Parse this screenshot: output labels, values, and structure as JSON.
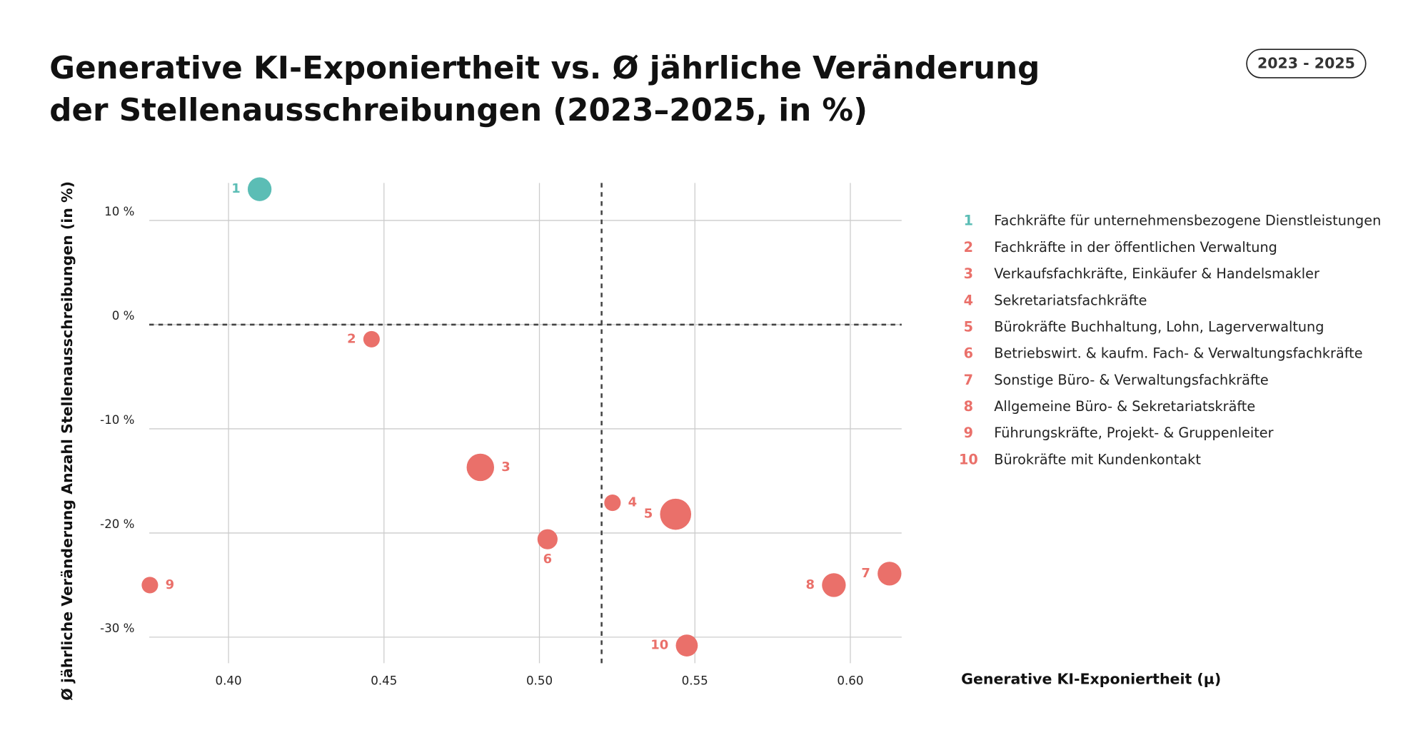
{
  "chart_data": {
    "type": "bubble",
    "title_lines": [
      "Generative KI-Exponiertheit vs. Ø jährliche Veränderung",
      "der Stellenausschreibungen (2023–2025, in %)"
    ],
    "badge": "2023 - 2025",
    "x_label": "Generative KI-Exponiertheit (µ)",
    "y_label": "Ø jährliche Veränderung Anzahl Stellenausschreibungen (in %)",
    "labels": [
      "1",
      "2",
      "3",
      "4",
      "5",
      "6",
      "7",
      "8",
      "9",
      "10"
    ],
    "names": [
      "Fachkräfte für unternehmensbezogene Dienstleistungen",
      "Fachkräfte in der öffentlichen Verwaltung",
      "Verkaufsfachkräfte, Einkäufer & Handelsmakler",
      "Sekretariatsfachkräfte",
      "Bürokräfte Buchhaltung, Lohn, Lagerverwaltung",
      "Betriebswirt. & kaufm. Fach- & Verwaltungsfachkräfte",
      "Sonstige Büro- & Verwaltungsfachkräfte",
      "Allgemeine Büro- & Sekretariatskräfte",
      "Führungskräfte, Projekt- & Gruppenleiter",
      "Bürokräfte mit Kundenkontakt"
    ],
    "x": [
      0.41,
      0.446,
      0.481,
      0.5235,
      0.5438,
      0.5026,
      0.6126,
      0.5947,
      0.3747,
      0.5474
    ],
    "values": [
      13.0,
      -1.4,
      -13.7,
      -17.1,
      -18.2,
      -20.6,
      -23.9,
      -25.0,
      -25.0,
      -30.8
    ],
    "sizes": [
      169,
      81,
      225,
      81,
      289,
      121,
      169,
      169,
      81,
      144
    ],
    "colors": [
      "#5bbdb5",
      "#ea706a",
      "#ea706a",
      "#ea706a",
      "#ea706a",
      "#ea706a",
      "#ea706a",
      "#ea706a",
      "#ea706a",
      "#ea706a"
    ],
    "xlim": [
      0.3745,
      0.6165
    ],
    "ylim": [
      -32.5,
      13.6
    ],
    "xticks": [
      {
        "value": 0.4,
        "label": "0.40"
      },
      {
        "value": 0.45,
        "label": "0.45"
      },
      {
        "value": 0.5,
        "label": "0.50"
      },
      {
        "value": 0.55,
        "label": "0.55"
      },
      {
        "value": 0.6,
        "label": "0.60"
      }
    ],
    "yticks": [
      {
        "value": 10,
        "label": "10 %"
      },
      {
        "value": 0,
        "label": "0 %"
      },
      {
        "value": -10,
        "label": "-10 %"
      },
      {
        "value": -20,
        "label": "-20 %"
      },
      {
        "value": -30,
        "label": "-30 %"
      }
    ],
    "reference_lines": {
      "x": 0.52,
      "y": 0
    },
    "grid": true
  }
}
